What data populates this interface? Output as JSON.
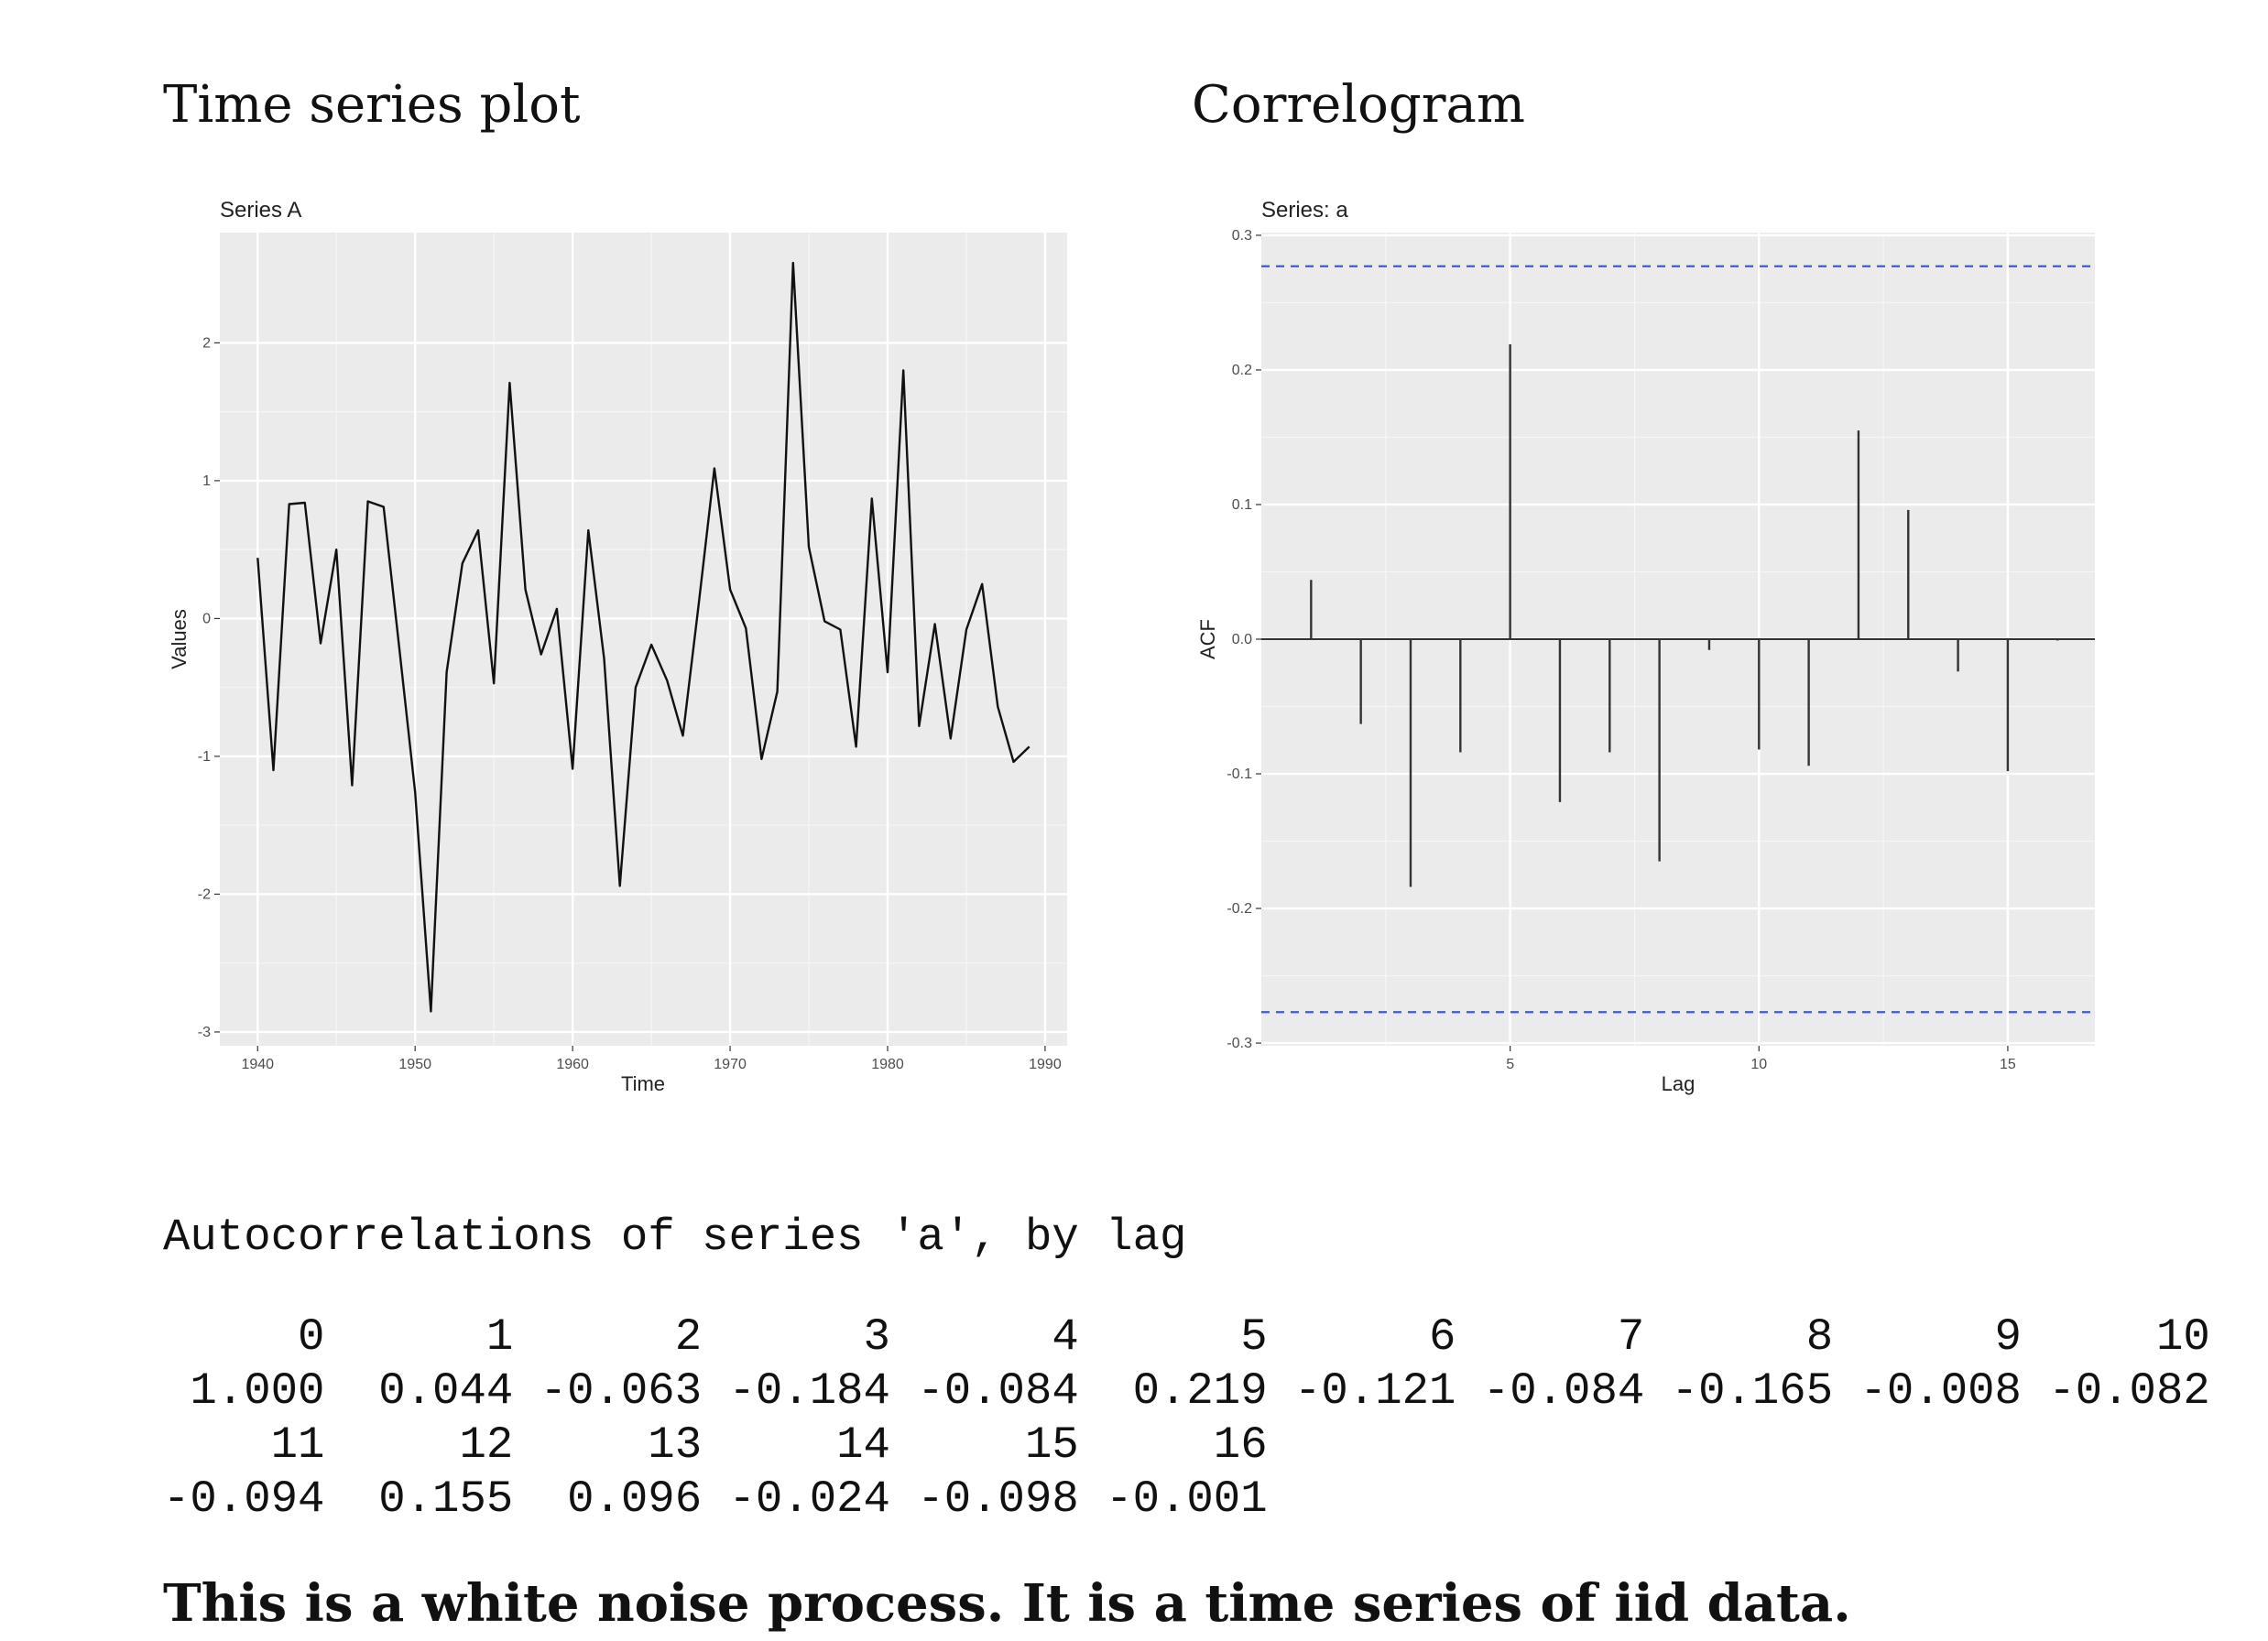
{
  "headings": {
    "left": "Time series plot",
    "right": "Correlogram"
  },
  "chart_data": [
    {
      "type": "line",
      "title": "Series A",
      "xlabel": "Time",
      "ylabel": "Values",
      "xlim": [
        1937.6,
        1991.4
      ],
      "ylim": [
        -3.1,
        2.8
      ],
      "xticks": [
        1940,
        1950,
        1960,
        1970,
        1980,
        1990
      ],
      "yticks": [
        -3,
        -2,
        -1,
        0,
        1,
        2
      ],
      "grid": true,
      "series": [
        {
          "x": [
            1940,
            1941,
            1942,
            1943,
            1944,
            1945,
            1946,
            1947,
            1948,
            1949,
            1950,
            1951,
            1952,
            1953,
            1954,
            1955,
            1956,
            1957,
            1958,
            1959,
            1960,
            1961,
            1962,
            1963,
            1964,
            1965,
            1966,
            1967,
            1968,
            1969,
            1970,
            1971,
            1972,
            1973,
            1974,
            1975,
            1976,
            1977,
            1978,
            1979,
            1980,
            1981,
            1982,
            1983,
            1984,
            1985,
            1986,
            1987,
            1988,
            1989
          ],
          "values": [
            0.44,
            -1.1,
            0.83,
            0.84,
            -0.18,
            0.5,
            -1.21,
            0.85,
            0.81,
            -0.22,
            -1.26,
            -2.85,
            -0.39,
            0.4,
            0.64,
            -0.47,
            1.71,
            0.21,
            -0.26,
            0.07,
            -1.09,
            0.64,
            -0.29,
            -1.94,
            -0.5,
            -0.19,
            -0.45,
            -0.85,
            0.1,
            1.09,
            0.21,
            -0.07,
            -1.02,
            -0.53,
            2.58,
            0.52,
            -0.02,
            -0.08,
            -0.93,
            0.87,
            -0.39,
            1.8,
            -0.78,
            -0.04,
            -0.87,
            -0.08,
            0.25,
            -0.64,
            -1.04,
            -0.93
          ]
        }
      ]
    },
    {
      "type": "bar",
      "title": "Series: a",
      "xlabel": "Lag",
      "ylabel": "ACF",
      "xlim": [
        0,
        16.75
      ],
      "ylim": [
        -0.302,
        0.302
      ],
      "xticks": [
        5,
        10,
        15
      ],
      "yticks": [
        -0.3,
        -0.2,
        -0.1,
        0.0,
        0.1,
        0.2,
        0.3
      ],
      "ytick_labels": [
        "-0.3",
        "-0.2",
        "-0.1",
        "0.0",
        "0.1",
        "0.2",
        "0.3"
      ],
      "confidence_bound": 0.277,
      "bound_color": "#3b5bdb",
      "grid": true,
      "lags": [
        1,
        2,
        3,
        4,
        5,
        6,
        7,
        8,
        9,
        10,
        11,
        12,
        13,
        14,
        15,
        16
      ],
      "values": [
        0.044,
        -0.063,
        -0.184,
        -0.084,
        0.219,
        -0.121,
        -0.084,
        -0.165,
        -0.008,
        -0.082,
        -0.094,
        0.155,
        0.096,
        -0.024,
        -0.098,
        -0.001
      ]
    }
  ],
  "acf_output": {
    "title": "Autocorrelations of series 'a', by lag",
    "lines": [
      "     0      1      2      3      4      5      6      7      8      9     10",
      " 1.000  0.044 -0.063 -0.184 -0.084  0.219 -0.121 -0.084 -0.165 -0.008 -0.082",
      "    11     12     13     14     15     16",
      "-0.094  0.155  0.096 -0.024 -0.098 -0.001"
    ]
  },
  "conclusion": "This is a white noise process. It is a time series of iid data."
}
